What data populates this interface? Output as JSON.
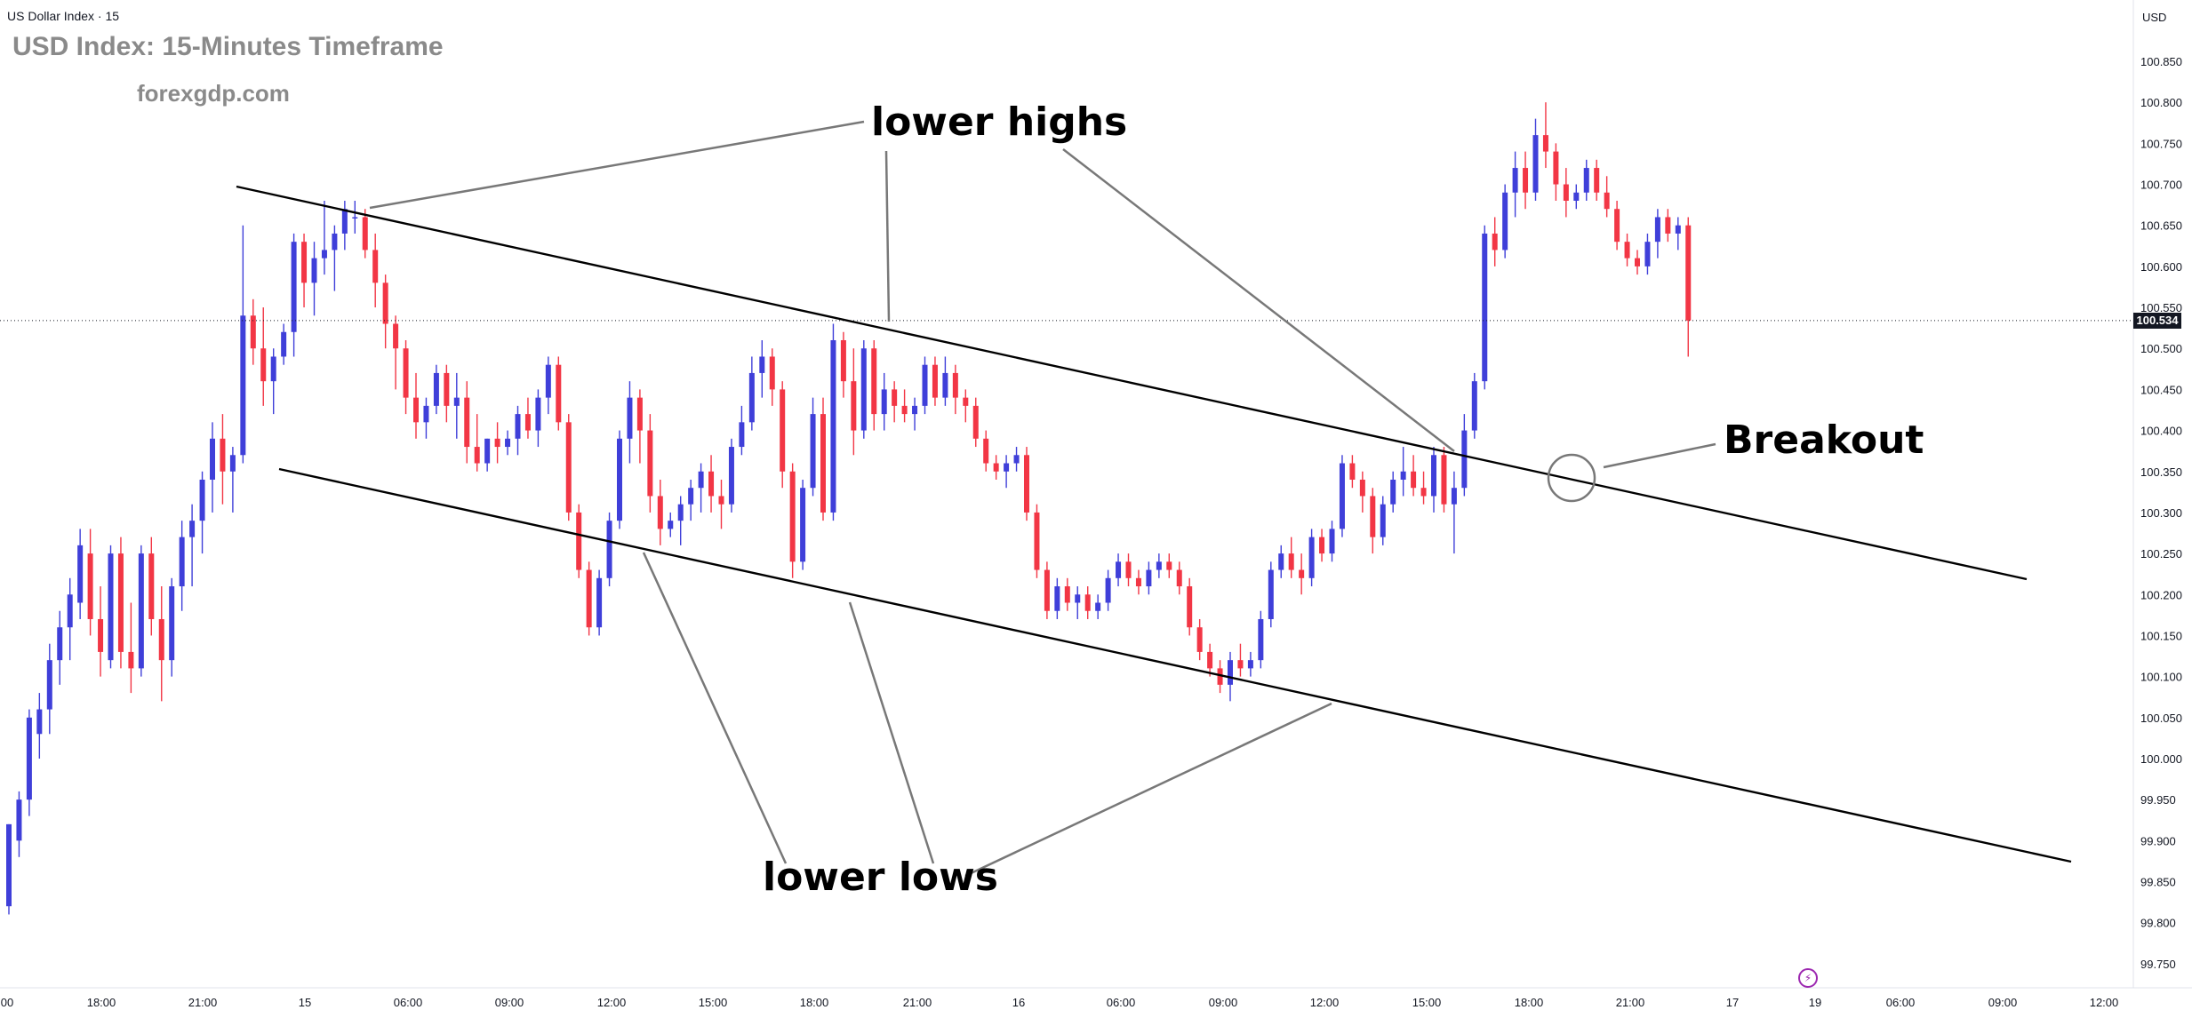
{
  "header": {
    "symbol": "US Dollar Index · 15",
    "title": "USD Index: 15-Minutes Timeframe",
    "site": "forexgdp.com",
    "currency": "USD"
  },
  "annotations": {
    "lower_highs": "lower highs",
    "lower_lows": "lower lows",
    "breakout": "Breakout"
  },
  "last_price_label": "100.534",
  "chart_data": {
    "type": "candlestick",
    "y_ticks": [
      "100.850",
      "100.800",
      "100.750",
      "100.700",
      "100.650",
      "100.600",
      "100.550",
      "100.500",
      "100.450",
      "100.400",
      "100.350",
      "100.300",
      "100.250",
      "100.200",
      "100.150",
      "100.100",
      "100.050",
      "100.000",
      "99.950",
      "99.900",
      "99.850",
      "99.800",
      "99.750"
    ],
    "y_tick_values": [
      100.85,
      100.8,
      100.75,
      100.7,
      100.65,
      100.6,
      100.55,
      100.5,
      100.45,
      100.4,
      100.35,
      100.3,
      100.25,
      100.2,
      100.15,
      100.1,
      100.05,
      100.0,
      99.95,
      99.9,
      99.85,
      99.8,
      99.75
    ],
    "x_ticks": [
      "00",
      "18:00",
      "21:00",
      "15",
      "06:00",
      "09:00",
      "12:00",
      "15:00",
      "18:00",
      "21:00",
      "16",
      "06:00",
      "09:00",
      "12:00",
      "15:00",
      "18:00",
      "21:00",
      "17",
      "19",
      "06:00",
      "09:00",
      "12:00"
    ],
    "last_price": 100.534,
    "colors": {
      "up": "#3f3fd9",
      "down": "#f23645",
      "lines": "#000000",
      "callouts": "#787878"
    },
    "candles": [
      [
        99.82,
        99.92,
        99.81,
        99.92
      ],
      [
        99.9,
        99.96,
        99.88,
        99.95
      ],
      [
        99.95,
        100.06,
        99.93,
        100.05
      ],
      [
        100.03,
        100.08,
        100.0,
        100.06
      ],
      [
        100.06,
        100.14,
        100.03,
        100.12
      ],
      [
        100.12,
        100.18,
        100.09,
        100.16
      ],
      [
        100.16,
        100.22,
        100.12,
        100.2
      ],
      [
        100.19,
        100.28,
        100.17,
        100.26
      ],
      [
        100.25,
        100.28,
        100.15,
        100.17
      ],
      [
        100.17,
        100.21,
        100.1,
        100.13
      ],
      [
        100.12,
        100.26,
        100.11,
        100.25
      ],
      [
        100.25,
        100.27,
        100.11,
        100.13
      ],
      [
        100.13,
        100.19,
        100.08,
        100.11
      ],
      [
        100.11,
        100.26,
        100.1,
        100.25
      ],
      [
        100.25,
        100.27,
        100.15,
        100.17
      ],
      [
        100.17,
        100.21,
        100.07,
        100.12
      ],
      [
        100.12,
        100.22,
        100.1,
        100.21
      ],
      [
        100.21,
        100.29,
        100.18,
        100.27
      ],
      [
        100.27,
        100.31,
        100.21,
        100.29
      ],
      [
        100.29,
        100.35,
        100.25,
        100.34
      ],
      [
        100.34,
        100.41,
        100.3,
        100.39
      ],
      [
        100.39,
        100.42,
        100.31,
        100.35
      ],
      [
        100.35,
        100.38,
        100.3,
        100.37
      ],
      [
        100.37,
        100.65,
        100.36,
        100.54
      ],
      [
        100.54,
        100.56,
        100.48,
        100.5
      ],
      [
        100.5,
        100.55,
        100.43,
        100.46
      ],
      [
        100.46,
        100.5,
        100.42,
        100.49
      ],
      [
        100.49,
        100.53,
        100.48,
        100.52
      ],
      [
        100.52,
        100.64,
        100.49,
        100.63
      ],
      [
        100.63,
        100.64,
        100.55,
        100.58
      ],
      [
        100.58,
        100.63,
        100.54,
        100.61
      ],
      [
        100.61,
        100.68,
        100.59,
        100.62
      ],
      [
        100.62,
        100.65,
        100.57,
        100.64
      ],
      [
        100.64,
        100.68,
        100.62,
        100.67
      ],
      [
        100.66,
        100.68,
        100.64,
        100.66
      ],
      [
        100.66,
        100.67,
        100.61,
        100.62
      ],
      [
        100.62,
        100.64,
        100.55,
        100.58
      ],
      [
        100.58,
        100.59,
        100.5,
        100.53
      ],
      [
        100.53,
        100.54,
        100.45,
        100.5
      ],
      [
        100.5,
        100.51,
        100.42,
        100.44
      ],
      [
        100.44,
        100.47,
        100.39,
        100.41
      ],
      [
        100.41,
        100.44,
        100.39,
        100.43
      ],
      [
        100.43,
        100.48,
        100.42,
        100.47
      ],
      [
        100.47,
        100.48,
        100.41,
        100.43
      ],
      [
        100.43,
        100.47,
        100.39,
        100.44
      ],
      [
        100.44,
        100.46,
        100.36,
        100.38
      ],
      [
        100.38,
        100.42,
        100.35,
        100.36
      ],
      [
        100.36,
        100.39,
        100.35,
        100.39
      ],
      [
        100.39,
        100.41,
        100.36,
        100.38
      ],
      [
        100.38,
        100.4,
        100.37,
        100.39
      ],
      [
        100.39,
        100.43,
        100.37,
        100.42
      ],
      [
        100.42,
        100.44,
        100.39,
        100.4
      ],
      [
        100.4,
        100.45,
        100.38,
        100.44
      ],
      [
        100.44,
        100.49,
        100.42,
        100.48
      ],
      [
        100.48,
        100.49,
        100.4,
        100.41
      ],
      [
        100.41,
        100.42,
        100.29,
        100.3
      ],
      [
        100.3,
        100.31,
        100.22,
        100.23
      ],
      [
        100.23,
        100.24,
        100.15,
        100.16
      ],
      [
        100.16,
        100.23,
        100.15,
        100.22
      ],
      [
        100.22,
        100.3,
        100.21,
        100.29
      ],
      [
        100.29,
        100.4,
        100.28,
        100.39
      ],
      [
        100.39,
        100.46,
        100.36,
        100.44
      ],
      [
        100.44,
        100.45,
        100.36,
        100.4
      ],
      [
        100.4,
        100.42,
        100.3,
        100.32
      ],
      [
        100.32,
        100.34,
        100.26,
        100.28
      ],
      [
        100.28,
        100.3,
        100.27,
        100.29
      ],
      [
        100.29,
        100.32,
        100.26,
        100.31
      ],
      [
        100.31,
        100.34,
        100.29,
        100.33
      ],
      [
        100.33,
        100.36,
        100.3,
        100.35
      ],
      [
        100.35,
        100.37,
        100.3,
        100.32
      ],
      [
        100.32,
        100.34,
        100.28,
        100.31
      ],
      [
        100.31,
        100.39,
        100.3,
        100.38
      ],
      [
        100.38,
        100.43,
        100.37,
        100.41
      ],
      [
        100.41,
        100.49,
        100.4,
        100.47
      ],
      [
        100.47,
        100.51,
        100.44,
        100.49
      ],
      [
        100.49,
        100.5,
        100.43,
        100.45
      ],
      [
        100.45,
        100.46,
        100.33,
        100.35
      ],
      [
        100.35,
        100.36,
        100.22,
        100.24
      ],
      [
        100.24,
        100.34,
        100.23,
        100.33
      ],
      [
        100.33,
        100.44,
        100.32,
        100.42
      ],
      [
        100.42,
        100.44,
        100.29,
        100.3
      ],
      [
        100.3,
        100.53,
        100.29,
        100.51
      ],
      [
        100.51,
        100.52,
        100.44,
        100.46
      ],
      [
        100.46,
        100.5,
        100.37,
        100.4
      ],
      [
        100.4,
        100.51,
        100.39,
        100.5
      ],
      [
        100.5,
        100.51,
        100.4,
        100.42
      ],
      [
        100.42,
        100.47,
        100.4,
        100.45
      ],
      [
        100.45,
        100.46,
        100.41,
        100.43
      ],
      [
        100.43,
        100.45,
        100.41,
        100.42
      ],
      [
        100.42,
        100.44,
        100.4,
        100.43
      ],
      [
        100.43,
        100.49,
        100.42,
        100.48
      ],
      [
        100.48,
        100.49,
        100.43,
        100.44
      ],
      [
        100.44,
        100.49,
        100.43,
        100.47
      ],
      [
        100.47,
        100.48,
        100.42,
        100.44
      ],
      [
        100.44,
        100.45,
        100.41,
        100.43
      ],
      [
        100.43,
        100.44,
        100.38,
        100.39
      ],
      [
        100.39,
        100.4,
        100.35,
        100.36
      ],
      [
        100.36,
        100.37,
        100.34,
        100.35
      ],
      [
        100.35,
        100.37,
        100.33,
        100.36
      ],
      [
        100.36,
        100.38,
        100.35,
        100.37
      ],
      [
        100.37,
        100.38,
        100.29,
        100.3
      ],
      [
        100.3,
        100.31,
        100.22,
        100.23
      ],
      [
        100.23,
        100.24,
        100.17,
        100.18
      ],
      [
        100.18,
        100.22,
        100.17,
        100.21
      ],
      [
        100.21,
        100.22,
        100.18,
        100.19
      ],
      [
        100.19,
        100.21,
        100.17,
        100.2
      ],
      [
        100.2,
        100.21,
        100.17,
        100.18
      ],
      [
        100.18,
        100.2,
        100.17,
        100.19
      ],
      [
        100.19,
        100.23,
        100.18,
        100.22
      ],
      [
        100.22,
        100.25,
        100.21,
        100.24
      ],
      [
        100.24,
        100.25,
        100.21,
        100.22
      ],
      [
        100.22,
        100.23,
        100.2,
        100.21
      ],
      [
        100.21,
        100.24,
        100.2,
        100.23
      ],
      [
        100.23,
        100.25,
        100.22,
        100.24
      ],
      [
        100.24,
        100.25,
        100.22,
        100.23
      ],
      [
        100.23,
        100.24,
        100.2,
        100.21
      ],
      [
        100.21,
        100.22,
        100.15,
        100.16
      ],
      [
        100.16,
        100.17,
        100.12,
        100.13
      ],
      [
        100.13,
        100.14,
        100.1,
        100.11
      ],
      [
        100.11,
        100.12,
        100.08,
        100.09
      ],
      [
        100.09,
        100.13,
        100.07,
        100.12
      ],
      [
        100.12,
        100.14,
        100.1,
        100.11
      ],
      [
        100.11,
        100.13,
        100.1,
        100.12
      ],
      [
        100.12,
        100.18,
        100.11,
        100.17
      ],
      [
        100.17,
        100.24,
        100.16,
        100.23
      ],
      [
        100.23,
        100.26,
        100.22,
        100.25
      ],
      [
        100.25,
        100.27,
        100.22,
        100.23
      ],
      [
        100.23,
        100.25,
        100.2,
        100.22
      ],
      [
        100.22,
        100.28,
        100.21,
        100.27
      ],
      [
        100.27,
        100.28,
        100.24,
        100.25
      ],
      [
        100.25,
        100.29,
        100.24,
        100.28
      ],
      [
        100.28,
        100.37,
        100.27,
        100.36
      ],
      [
        100.36,
        100.37,
        100.33,
        100.34
      ],
      [
        100.34,
        100.35,
        100.3,
        100.32
      ],
      [
        100.32,
        100.33,
        100.25,
        100.27
      ],
      [
        100.27,
        100.32,
        100.26,
        100.31
      ],
      [
        100.31,
        100.35,
        100.3,
        100.34
      ],
      [
        100.34,
        100.38,
        100.32,
        100.35
      ],
      [
        100.35,
        100.37,
        100.32,
        100.33
      ],
      [
        100.33,
        100.35,
        100.31,
        100.32
      ],
      [
        100.32,
        100.38,
        100.3,
        100.37
      ],
      [
        100.37,
        100.38,
        100.3,
        100.31
      ],
      [
        100.31,
        100.35,
        100.25,
        100.33
      ],
      [
        100.33,
        100.42,
        100.32,
        100.4
      ],
      [
        100.4,
        100.47,
        100.39,
        100.46
      ],
      [
        100.46,
        100.65,
        100.45,
        100.64
      ],
      [
        100.64,
        100.66,
        100.6,
        100.62
      ],
      [
        100.62,
        100.7,
        100.61,
        100.69
      ],
      [
        100.69,
        100.74,
        100.66,
        100.72
      ],
      [
        100.72,
        100.74,
        100.67,
        100.69
      ],
      [
        100.69,
        100.78,
        100.68,
        100.76
      ],
      [
        100.76,
        100.8,
        100.72,
        100.74
      ],
      [
        100.74,
        100.75,
        100.68,
        100.7
      ],
      [
        100.7,
        100.72,
        100.66,
        100.68
      ],
      [
        100.68,
        100.7,
        100.67,
        100.69
      ],
      [
        100.69,
        100.73,
        100.68,
        100.72
      ],
      [
        100.72,
        100.73,
        100.68,
        100.69
      ],
      [
        100.69,
        100.71,
        100.66,
        100.67
      ],
      [
        100.67,
        100.68,
        100.62,
        100.63
      ],
      [
        100.63,
        100.64,
        100.6,
        100.61
      ],
      [
        100.61,
        100.62,
        100.59,
        100.6
      ],
      [
        100.6,
        100.64,
        100.59,
        100.63
      ],
      [
        100.63,
        100.67,
        100.61,
        100.66
      ],
      [
        100.66,
        100.67,
        100.63,
        100.64
      ],
      [
        100.64,
        100.66,
        100.62,
        100.65
      ],
      [
        100.65,
        100.66,
        100.49,
        100.534
      ]
    ],
    "channel_lines": [
      {
        "name": "upper-trendline",
        "from": [
          "15 · 00:15",
          100.7
        ],
        "to": [
          "17 · 06:15",
          100.22
        ]
      },
      {
        "name": "lower-trendline",
        "from": [
          "14 · 23:45",
          100.36
        ],
        "to": [
          "17 · 09:15",
          99.89
        ]
      }
    ]
  }
}
